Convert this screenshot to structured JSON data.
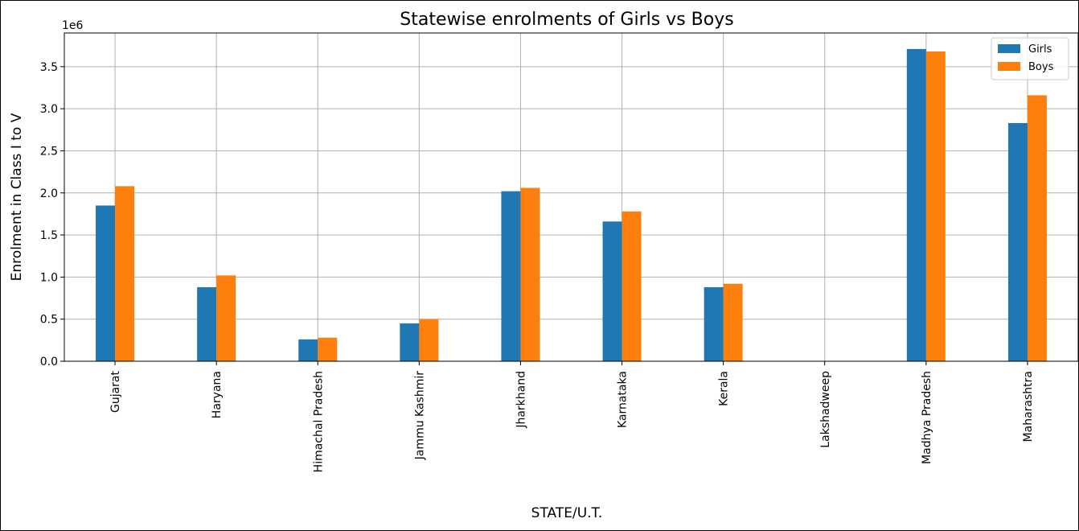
{
  "chart_data": {
    "type": "bar",
    "title": "Statewise enrolments of Girls vs Boys",
    "xlabel": "STATE/U.T.",
    "ylabel": "Enrolment in Class I to V",
    "y_scale_label": "1e6",
    "ylim": [
      0,
      3.9
    ],
    "yticks": [
      0.0,
      0.5,
      1.0,
      1.5,
      2.0,
      2.5,
      3.0,
      3.5
    ],
    "ytick_labels": [
      "0.0",
      "0.5",
      "1.0",
      "1.5",
      "2.0",
      "2.5",
      "3.0",
      "3.5"
    ],
    "grid": true,
    "legend_position": "top-right",
    "categories": [
      "Gujarat",
      "Haryana",
      "Himachal Pradesh",
      "Jammu  Kashmir",
      "Jharkhand",
      "Karnataka",
      "Kerala",
      "Lakshadweep",
      "Madhya Pradesh",
      "Maharashtra"
    ],
    "series": [
      {
        "name": "Girls",
        "color": "#1f77b4",
        "values": [
          1.85,
          0.88,
          0.26,
          0.45,
          2.02,
          1.66,
          0.88,
          0.0,
          3.71,
          2.83
        ]
      },
      {
        "name": "Boys",
        "color": "#ff7f0e",
        "values": [
          2.08,
          1.02,
          0.28,
          0.5,
          2.06,
          1.78,
          0.92,
          0.0,
          3.68,
          3.16
        ]
      }
    ]
  }
}
